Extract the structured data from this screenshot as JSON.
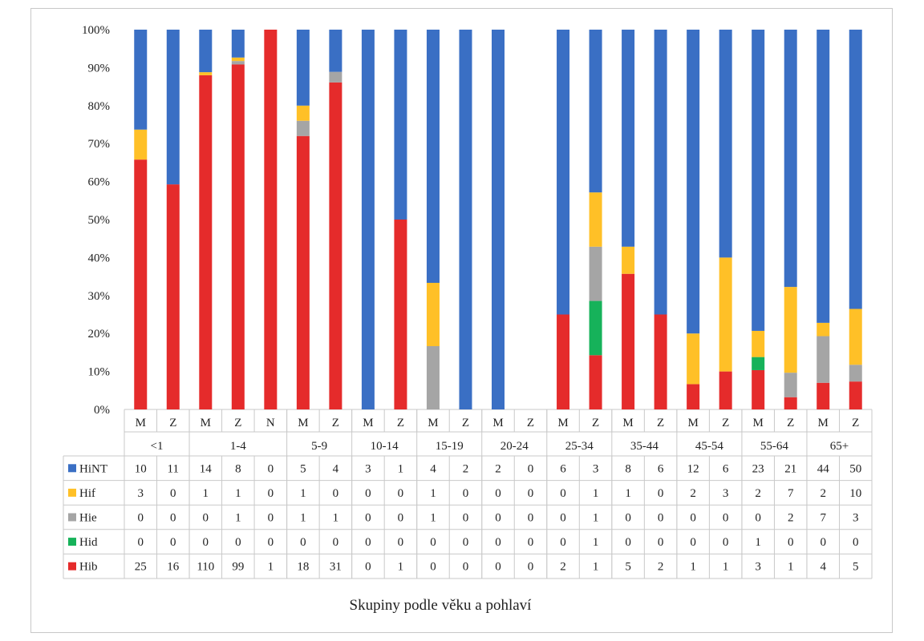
{
  "chart_data": {
    "type": "bar",
    "stacked": "percent",
    "xlabel": "Skupiny podle věku a pohlaví",
    "ylabel": "",
    "ylim": [
      0,
      100
    ],
    "yticks": [
      "0%",
      "10%",
      "20%",
      "30%",
      "40%",
      "50%",
      "60%",
      "70%",
      "80%",
      "90%",
      "100%"
    ],
    "grid": false,
    "legend": "in data table (left column)",
    "age_groups": [
      {
        "label": "<1",
        "span": 2
      },
      {
        "label": "1-4",
        "span": 3
      },
      {
        "label": "5-9",
        "span": 2
      },
      {
        "label": "10-14",
        "span": 2
      },
      {
        "label": "15-19",
        "span": 2
      },
      {
        "label": "20-24",
        "span": 2
      },
      {
        "label": "25-34",
        "span": 2
      },
      {
        "label": "35-44",
        "span": 2
      },
      {
        "label": "45-54",
        "span": 2
      },
      {
        "label": "55-64",
        "span": 2
      },
      {
        "label": "65+",
        "span": 2
      }
    ],
    "categories": [
      "M",
      "Z",
      "M",
      "Z",
      "N",
      "M",
      "Z",
      "M",
      "Z",
      "M",
      "Z",
      "M",
      "Z",
      "M",
      "Z",
      "M",
      "Z",
      "M",
      "Z",
      "M",
      "Z",
      "M",
      "Z"
    ],
    "series": [
      {
        "name": "Hib",
        "color": "#e52b2b",
        "values": [
          25,
          16,
          110,
          99,
          1,
          18,
          31,
          0,
          1,
          0,
          0,
          0,
          0,
          2,
          1,
          5,
          2,
          1,
          1,
          3,
          1,
          4,
          5
        ]
      },
      {
        "name": "Hid",
        "color": "#16b25a",
        "values": [
          0,
          0,
          0,
          0,
          0,
          0,
          0,
          0,
          0,
          0,
          0,
          0,
          0,
          0,
          1,
          0,
          0,
          0,
          0,
          1,
          0,
          0,
          0
        ]
      },
      {
        "name": "Hie",
        "color": "#a5a5a5",
        "values": [
          0,
          0,
          0,
          1,
          0,
          1,
          1,
          0,
          0,
          1,
          0,
          0,
          0,
          0,
          1,
          0,
          0,
          0,
          0,
          0,
          2,
          7,
          3
        ]
      },
      {
        "name": "Hif",
        "color": "#ffc027",
        "values": [
          3,
          0,
          1,
          1,
          0,
          1,
          0,
          0,
          0,
          1,
          0,
          0,
          0,
          0,
          1,
          1,
          0,
          2,
          3,
          2,
          7,
          2,
          10
        ]
      },
      {
        "name": "HiNT",
        "color": "#3a6fc4",
        "values": [
          10,
          11,
          14,
          8,
          0,
          5,
          4,
          3,
          1,
          4,
          2,
          2,
          0,
          6,
          3,
          8,
          6,
          12,
          6,
          23,
          21,
          44,
          50
        ]
      }
    ],
    "table_row_order": [
      "HiNT",
      "Hif",
      "Hie",
      "Hid",
      "Hib"
    ]
  }
}
